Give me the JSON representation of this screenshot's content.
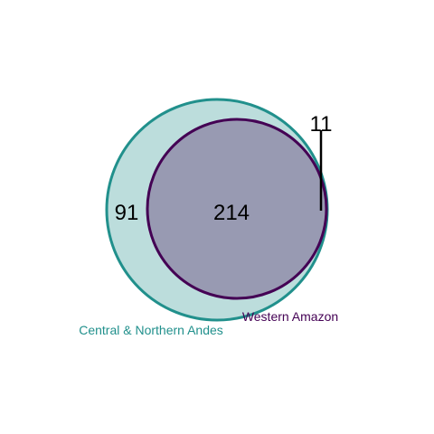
{
  "diagram": {
    "type": "venn",
    "sets": [
      {
        "name": "Central & Northern Andes",
        "color": "#21908C",
        "fill": "#21908C",
        "fill_opacity": 0.3
      },
      {
        "name": "Western Amazon",
        "color": "#440154",
        "fill": "#440154",
        "fill_opacity": 0.3
      }
    ],
    "counts": {
      "central_northern_andes_only": "91",
      "intersection": "214",
      "western_amazon_only": "11"
    }
  }
}
